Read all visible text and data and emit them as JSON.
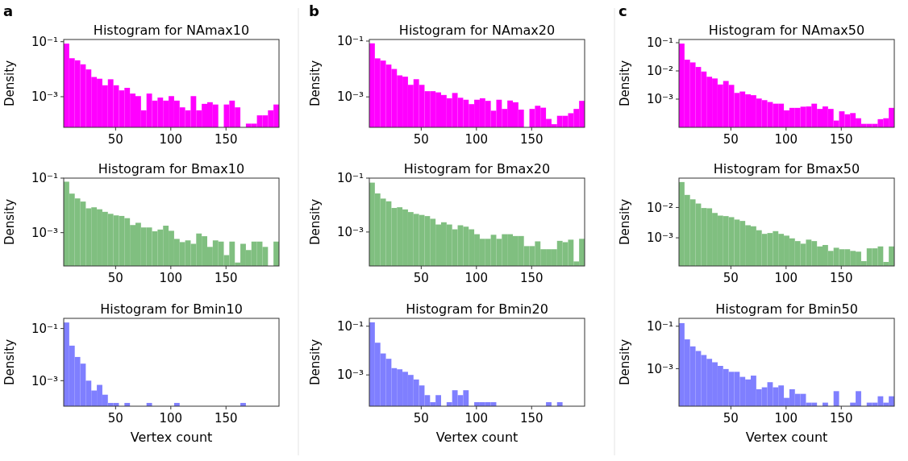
{
  "chart_data": [
    {
      "type": "histogram",
      "title": "Histogram for NAmax10",
      "ylabel": "Density",
      "annotations": [
        "a"
      ],
      "color": "#ff00ff",
      "log": true,
      "xlim": [
        3,
        198
      ],
      "xticks": [
        50,
        100,
        150
      ],
      "ylim": [
        7.7e-05,
        0.12
      ],
      "yticks": [
        {
          "value": 0.1,
          "label": "10⁻¹"
        },
        {
          "value": 0.001,
          "label": "10⁻³"
        }
      ],
      "bins": [
        3,
        8,
        13,
        18,
        23,
        28,
        33,
        38,
        43,
        48,
        53,
        58,
        63,
        68,
        73,
        78,
        83,
        88,
        93,
        98,
        103,
        108,
        113,
        118,
        123,
        128,
        133,
        138,
        143,
        148,
        153,
        158,
        163,
        168,
        173,
        178,
        183,
        188,
        193,
        198
      ],
      "values": [
        0.085,
        0.025,
        0.021,
        0.015,
        0.0098,
        0.0052,
        0.0045,
        0.0026,
        0.0043,
        0.0026,
        0.0017,
        0.0021,
        0.0013,
        0.00105,
        0.00032,
        0.0013,
        0.00072,
        0.00093,
        0.00072,
        0.00105,
        0.00072,
        0.00041,
        0.00032,
        0.00105,
        0.00032,
        0.00055,
        0.00063,
        0.00052,
        null,
        0.00052,
        0.00072,
        0.00041,
        null,
        0.000105,
        0.000105,
        0.00021,
        0.00021,
        0.00032,
        0.00052
      ]
    },
    {
      "type": "histogram",
      "title": "Histogram for NAmax20",
      "ylabel": "Density",
      "annotations": [
        "b"
      ],
      "color": "#ff00ff",
      "log": true,
      "xlim": [
        3,
        198
      ],
      "xticks": [
        50,
        100,
        150
      ],
      "ylim": [
        8.1e-05,
        0.114
      ],
      "yticks": [
        {
          "value": 0.1,
          "label": "10⁻¹"
        },
        {
          "value": 0.001,
          "label": "10⁻³"
        }
      ],
      "bins": [
        3,
        8,
        13,
        18,
        23,
        28,
        33,
        38,
        43,
        48,
        53,
        58,
        63,
        68,
        73,
        78,
        83,
        88,
        93,
        98,
        103,
        108,
        113,
        118,
        123,
        128,
        133,
        138,
        143,
        148,
        153,
        158,
        163,
        168,
        173,
        178,
        183,
        188,
        193,
        198
      ],
      "values": [
        0.083,
        0.024,
        0.02,
        0.0144,
        0.01,
        0.0059,
        0.0053,
        0.0027,
        0.0043,
        0.0027,
        0.0016,
        0.0016,
        0.00145,
        0.00117,
        0.00089,
        0.00138,
        0.00093,
        0.00079,
        0.00055,
        0.00079,
        0.00089,
        0.00072,
        0.00032,
        0.00079,
        0.00037,
        0.00074,
        0.00064,
        0.00035,
        null,
        0.00037,
        0.00048,
        0.00041,
        0.000162,
        0.000105,
        0.00021,
        0.00021,
        0.00026,
        0.00037,
        0.00072
      ]
    },
    {
      "type": "histogram",
      "title": "Histogram for NAmax50",
      "ylabel": "Density",
      "annotations": [
        "c"
      ],
      "color": "#ff00ff",
      "log": true,
      "xlim": [
        3,
        198
      ],
      "xticks": [
        50,
        100,
        150
      ],
      "ylim": [
        0.0001,
        0.13
      ],
      "yticks": [
        {
          "value": 0.1,
          "label": "10⁻¹"
        },
        {
          "value": 0.01,
          "label": "10⁻²"
        },
        {
          "value": 0.001,
          "label": "10⁻³"
        }
      ],
      "bins": [
        3,
        8,
        13,
        18,
        23,
        28,
        33,
        38,
        43,
        48,
        53,
        58,
        63,
        68,
        73,
        78,
        83,
        88,
        93,
        98,
        103,
        108,
        113,
        118,
        123,
        128,
        133,
        138,
        143,
        148,
        153,
        158,
        163,
        168,
        173,
        178,
        183,
        188,
        193,
        198
      ],
      "values": [
        0.093,
        0.025,
        0.02,
        0.0138,
        0.0095,
        0.0062,
        0.0054,
        0.0033,
        0.0044,
        0.0032,
        0.00166,
        0.00186,
        0.00148,
        0.00138,
        0.00105,
        0.00092,
        0.00079,
        0.00069,
        0.00069,
        0.0004,
        0.00049,
        0.00049,
        0.00054,
        0.00055,
        0.00069,
        0.00045,
        0.00055,
        0.00045,
        0.000174,
        0.00037,
        0.00029,
        0.00032,
        0.00021,
        0.000133,
        0.000133,
        0.000133,
        0.000195,
        0.00021,
        0.00049
      ]
    },
    {
      "type": "histogram",
      "title": "Histogram for Bmax10",
      "ylabel": "Density",
      "color": "#80bf80",
      "log": true,
      "xlim": [
        3,
        198
      ],
      "xticks": [
        50,
        100,
        150
      ],
      "ylim": [
        6e-05,
        0.1
      ],
      "yticks": [
        {
          "value": 0.1,
          "label": "10⁻¹"
        },
        {
          "value": 0.001,
          "label": "10⁻³"
        }
      ],
      "bins": [
        3,
        8,
        13,
        18,
        23,
        28,
        33,
        38,
        43,
        48,
        53,
        58,
        63,
        68,
        73,
        78,
        83,
        88,
        93,
        98,
        103,
        108,
        113,
        118,
        123,
        128,
        133,
        138,
        143,
        148,
        153,
        158,
        163,
        168,
        173,
        178,
        183,
        188,
        193,
        198
      ],
      "values": [
        0.074,
        0.027,
        0.018,
        0.0138,
        0.0078,
        0.0085,
        0.0072,
        0.0058,
        0.0049,
        0.0043,
        0.0041,
        0.0034,
        0.0019,
        0.0023,
        0.00155,
        0.00155,
        0.00112,
        0.0013,
        0.0018,
        0.00117,
        0.00059,
        0.00045,
        0.00052,
        0.00039,
        0.00093,
        0.00074,
        0.0003,
        0.00052,
        0.00047,
        0.00015,
        0.00047,
        8e-05,
        0.00039,
        0.00023,
        0.00047,
        0.00047,
        0.0003,
        null,
        0.00047
      ]
    },
    {
      "type": "histogram",
      "title": "Histogram for Bmax20",
      "ylabel": "Density",
      "color": "#80bf80",
      "log": true,
      "xlim": [
        3,
        198
      ],
      "xticks": [
        50,
        100,
        150
      ],
      "ylim": [
        5.5e-05,
        0.1
      ],
      "yticks": [
        {
          "value": 0.1,
          "label": "10⁻¹"
        },
        {
          "value": 0.001,
          "label": "10⁻³"
        }
      ],
      "bins": [
        3,
        8,
        13,
        18,
        23,
        28,
        33,
        38,
        43,
        48,
        53,
        58,
        63,
        68,
        73,
        78,
        83,
        88,
        93,
        98,
        103,
        108,
        113,
        118,
        123,
        128,
        133,
        138,
        143,
        148,
        153,
        158,
        163,
        168,
        173,
        178,
        183,
        188,
        193,
        198
      ],
      "values": [
        0.068,
        0.027,
        0.0174,
        0.0138,
        0.0078,
        0.0083,
        0.0069,
        0.0055,
        0.0047,
        0.0043,
        0.0039,
        0.0031,
        0.0019,
        0.0023,
        0.0019,
        0.00126,
        0.00178,
        0.00158,
        0.00126,
        0.00083,
        0.00056,
        0.00056,
        0.00079,
        0.00056,
        0.00083,
        0.00083,
        0.00071,
        0.00071,
        0.0003,
        0.0003,
        0.00045,
        0.00023,
        0.00023,
        0.00023,
        0.00047,
        0.00042,
        0.00052,
        8.1e-05,
        0.00056
      ]
    },
    {
      "type": "histogram",
      "title": "Histogram for Bmax50",
      "ylabel": "Density",
      "color": "#80bf80",
      "log": true,
      "xlim": [
        3,
        198
      ],
      "xticks": [
        50,
        100,
        150
      ],
      "ylim": [
        0.000118,
        0.093
      ],
      "yticks": [
        {
          "value": 0.01,
          "label": "10⁻²"
        },
        {
          "value": 0.001,
          "label": "10⁻³"
        }
      ],
      "bins": [
        3,
        8,
        13,
        18,
        23,
        28,
        33,
        38,
        43,
        48,
        53,
        58,
        63,
        68,
        73,
        78,
        83,
        88,
        93,
        98,
        103,
        108,
        113,
        118,
        123,
        128,
        133,
        138,
        143,
        148,
        153,
        158,
        163,
        168,
        173,
        178,
        183,
        188,
        193,
        198
      ],
      "values": [
        0.069,
        0.026,
        0.0186,
        0.0135,
        0.0096,
        0.0094,
        0.0066,
        0.0054,
        0.0052,
        0.0048,
        0.004,
        0.0036,
        0.0026,
        0.0024,
        0.00178,
        0.00135,
        0.00144,
        0.00166,
        0.00135,
        0.00118,
        0.00096,
        0.00078,
        0.00064,
        0.00087,
        0.00078,
        0.00052,
        0.00058,
        0.00037,
        0.00047,
        0.00042,
        0.00042,
        0.00037,
        0.00035,
        0.00017,
        0.00045,
        0.00045,
        0.00052,
        0.00016,
        0.00052
      ]
    },
    {
      "type": "histogram",
      "title": "Histogram for Bmin10",
      "xlabel": "Vertex count",
      "ylabel": "Density",
      "color": "#7f7fff",
      "log": true,
      "xlim": [
        3,
        198
      ],
      "xticks": [
        50,
        100,
        150
      ],
      "ylim": [
        0.000105,
        0.245
      ],
      "yticks": [
        {
          "value": 0.1,
          "label": "10⁻¹"
        },
        {
          "value": 0.001,
          "label": "10⁻³"
        }
      ],
      "bins": [
        3,
        8,
        13,
        18,
        23,
        28,
        33,
        38,
        43,
        48,
        53,
        58,
        63,
        68,
        73,
        78,
        83,
        88,
        93,
        98,
        103,
        108,
        113,
        118,
        123,
        128,
        133,
        138,
        143,
        148,
        153,
        158,
        163,
        168,
        173,
        178,
        183,
        188,
        193,
        198
      ],
      "values": [
        0.17,
        0.022,
        0.0081,
        0.0045,
        0.001,
        0.00042,
        0.00069,
        0.00029,
        0.00014,
        0.00014,
        null,
        0.00014,
        null,
        null,
        null,
        0.00014,
        null,
        null,
        null,
        null,
        0.00014,
        null,
        null,
        null,
        null,
        null,
        null,
        null,
        null,
        null,
        null,
        null,
        0.00014,
        null,
        null,
        null,
        null,
        null,
        null
      ]
    },
    {
      "type": "histogram",
      "title": "Histogram for Bmin20",
      "xlabel": "Vertex count",
      "ylabel": "Density",
      "color": "#7f7fff",
      "log": true,
      "xlim": [
        3,
        198
      ],
      "xticks": [
        50,
        100,
        150
      ],
      "ylim": [
        5.2e-05,
        0.21
      ],
      "yticks": [
        {
          "value": 0.1,
          "label": "10⁻¹"
        },
        {
          "value": 0.001,
          "label": "10⁻³"
        }
      ],
      "bins": [
        3,
        8,
        13,
        18,
        23,
        28,
        33,
        38,
        43,
        48,
        53,
        58,
        63,
        68,
        73,
        78,
        83,
        88,
        93,
        98,
        103,
        108,
        113,
        118,
        123,
        128,
        133,
        138,
        143,
        148,
        153,
        158,
        163,
        168,
        173,
        178,
        183,
        188,
        193,
        198
      ],
      "values": [
        0.144,
        0.021,
        0.0076,
        0.0046,
        0.0019,
        0.0017,
        0.00134,
        0.001,
        0.00065,
        0.00037,
        0.000148,
        7.6e-05,
        0.000148,
        null,
        7.6e-05,
        0.000235,
        0.000148,
        0.000235,
        null,
        7.6e-05,
        7.6e-05,
        7.6e-05,
        7.6e-05,
        null,
        null,
        null,
        null,
        null,
        null,
        null,
        null,
        null,
        7.6e-05,
        null,
        7.6e-05,
        null,
        null,
        null,
        null
      ]
    },
    {
      "type": "histogram",
      "title": "Histogram for Bmin50",
      "xlabel": "Vertex count",
      "ylabel": "Density",
      "color": "#7f7fff",
      "log": true,
      "xlim": [
        3,
        198
      ],
      "xticks": [
        50,
        100,
        150
      ],
      "ylim": [
        1.7e-05,
        0.235
      ],
      "yticks": [
        {
          "value": 0.1,
          "label": "10⁻¹"
        },
        {
          "value": 0.001,
          "label": "10⁻³"
        }
      ],
      "bins": [
        3,
        8,
        13,
        18,
        23,
        28,
        33,
        38,
        43,
        48,
        53,
        58,
        63,
        68,
        73,
        78,
        83,
        88,
        93,
        98,
        103,
        108,
        113,
        118,
        123,
        128,
        133,
        138,
        143,
        148,
        153,
        158,
        163,
        168,
        173,
        178,
        183,
        188,
        193,
        198
      ],
      "values": [
        0.14,
        0.024,
        0.0112,
        0.0068,
        0.0044,
        0.0029,
        0.002,
        0.00135,
        0.00096,
        0.00071,
        0.00071,
        0.00041,
        0.00031,
        0.00047,
        0.000107,
        0.000132,
        0.00023,
        0.000132,
        0.000162,
        4.2e-05,
        0.000107,
        6.5e-05,
        6.5e-05,
        2.5e-05,
        2.5e-05,
        null,
        2.5e-05,
        null,
        8.7e-05,
        null,
        null,
        2.5e-05,
        8.7e-05,
        null,
        2.5e-05,
        2.5e-05,
        5e-05,
        2.5e-05,
        5e-05
      ]
    }
  ]
}
